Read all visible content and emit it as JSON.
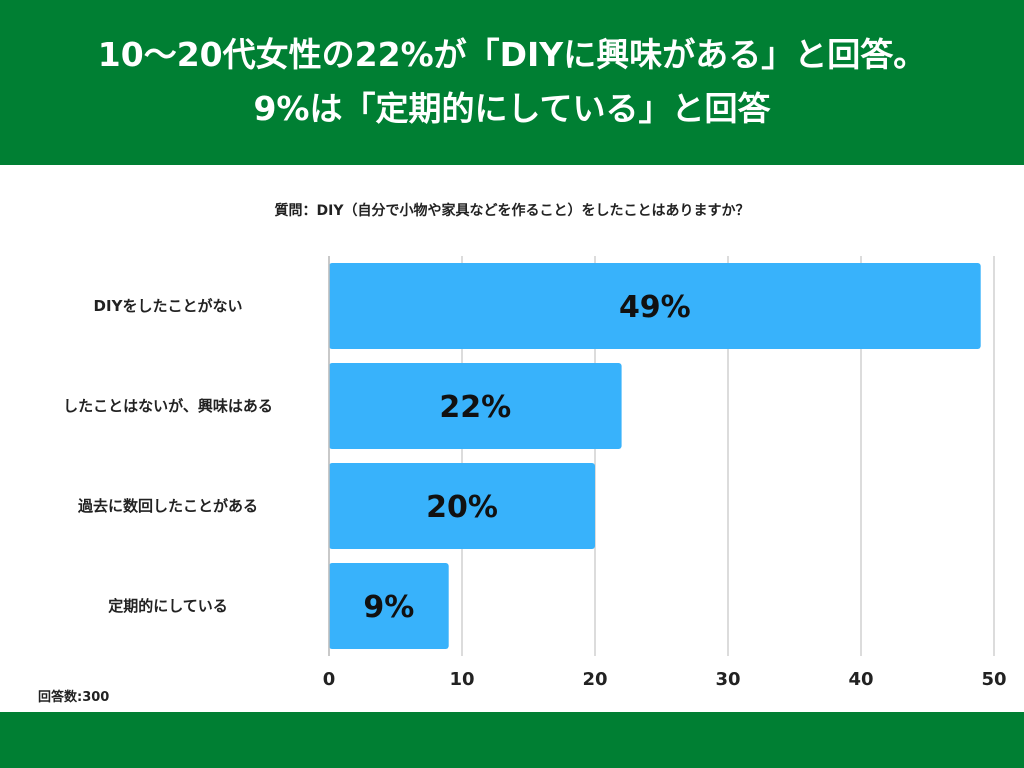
{
  "header": {
    "title_line1": "10〜20代女性の22%が「DIYに興味がある」と回答。",
    "title_line2": "9%は「定期的にしている」と回答"
  },
  "colors": {
    "header_bg": "#007f33",
    "bar": "#38b2fb",
    "grid": "#d0d0d0"
  },
  "chart_data": {
    "type": "bar",
    "orientation": "horizontal",
    "title": "質問：DIY（自分で小物や家具などを作ること）をしたことはありますか？",
    "categories": [
      "DIYをしたことがない",
      "したことはないが、興味はある",
      "過去に数回したことがある",
      "定期的にしている"
    ],
    "values": [
      49,
      22,
      20,
      9
    ],
    "value_labels": [
      "49%",
      "22%",
      "20%",
      "9%"
    ],
    "xlim": [
      0,
      50
    ],
    "xticks": [
      "0",
      "10",
      "20",
      "30",
      "40",
      "50"
    ],
    "grid": true,
    "legend": "none"
  },
  "note": {
    "sample_size": "回答数:300"
  }
}
